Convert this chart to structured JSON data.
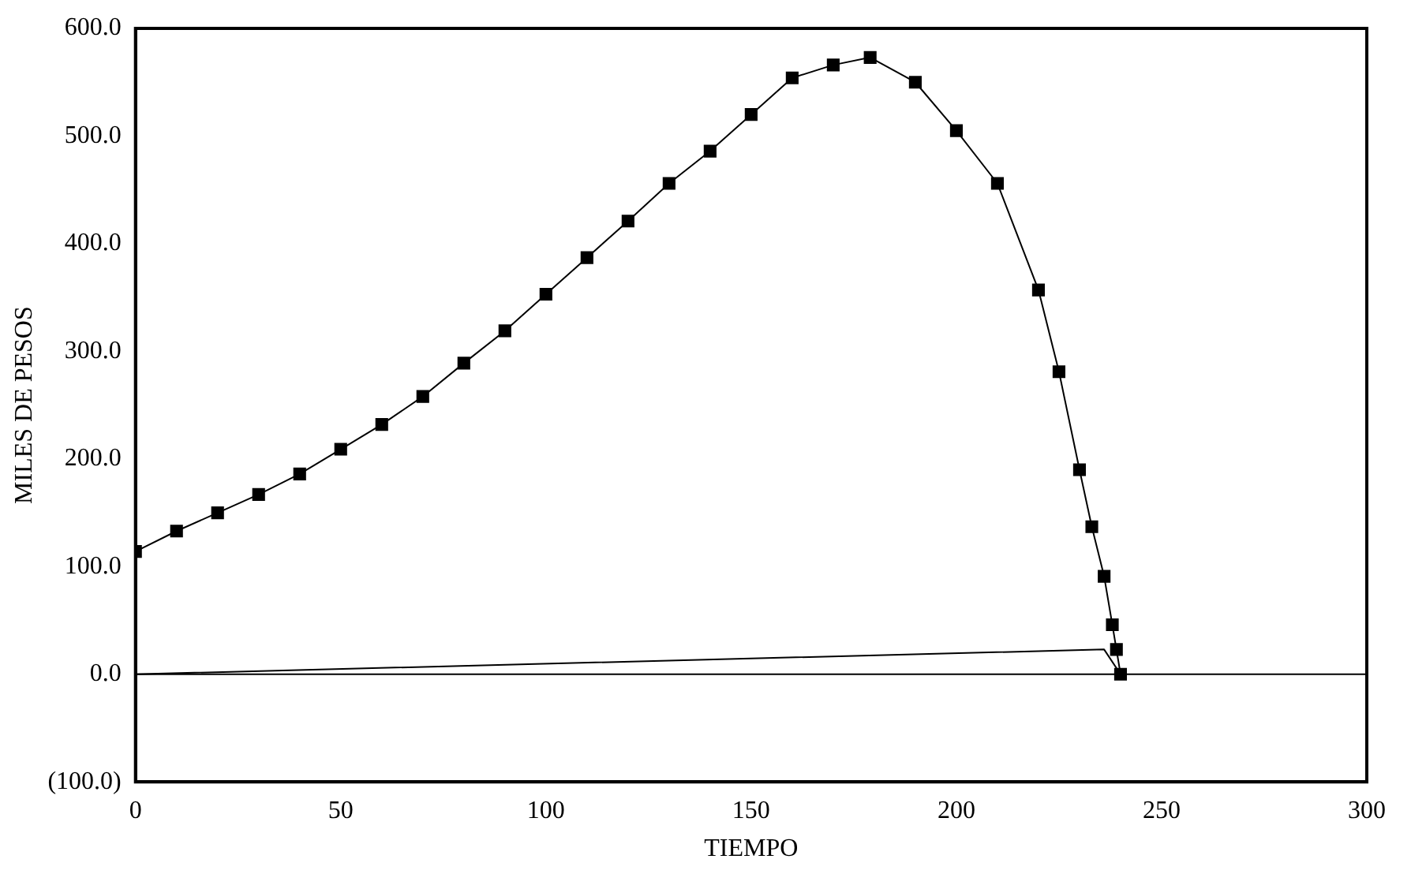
{
  "chart_data": {
    "type": "line",
    "xlabel": "TIEMPO",
    "ylabel": "MILES DE PESOS",
    "xlim": [
      0,
      300
    ],
    "xticks": [
      0,
      50,
      100,
      150,
      200,
      250,
      {
        "value": 300,
        "label": "300"
      }
    ],
    "ylim": [
      -100,
      600
    ],
    "yticks": [
      {
        "value": -100,
        "label": "(100.0)"
      },
      {
        "value": 0,
        "label": "0.0"
      },
      {
        "value": 100,
        "label": "100.0"
      },
      {
        "value": 200,
        "label": "200.0"
      },
      {
        "value": 300,
        "label": "300.0"
      },
      {
        "value": 400,
        "label": "400.0"
      },
      {
        "value": 500,
        "label": "500.0"
      },
      {
        "value": 600,
        "label": "600.0"
      }
    ],
    "grid": false,
    "legend": false,
    "ref_lines": [
      {
        "axis": "y",
        "value": 0,
        "color": "#000000"
      }
    ],
    "series": [
      {
        "color": "#000000",
        "marker": "square",
        "x": [
          0,
          10,
          20,
          30,
          40,
          50,
          60,
          70,
          80,
          90,
          100,
          110,
          120,
          130,
          140,
          150,
          160,
          170,
          179,
          190,
          200,
          210,
          220,
          225,
          230,
          233,
          236,
          238,
          239,
          240
        ],
        "values": [
          114,
          133,
          150,
          167,
          186,
          209,
          232,
          258,
          289,
          319,
          353,
          387,
          421,
          456,
          486,
          520,
          554,
          566,
          573,
          550,
          505,
          456,
          357,
          281,
          190,
          137,
          91,
          46,
          23,
          0
        ]
      },
      {
        "color": "#000000",
        "marker": "none",
        "x": [
          0,
          236,
          240
        ],
        "values": [
          0,
          23,
          0
        ]
      }
    ]
  }
}
